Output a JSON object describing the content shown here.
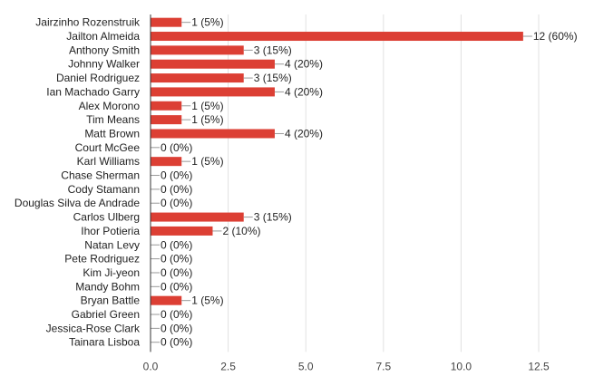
{
  "chart_data": {
    "type": "bar",
    "orientation": "horizontal",
    "categories": [
      "Jairzinho Rozenstruik",
      "Jailton Almeida",
      "Anthony Smith",
      "Johnny Walker",
      "Daniel Rodriguez",
      "Ian Machado Garry",
      "Alex Morono",
      "Tim Means",
      "Matt Brown",
      "Court McGee",
      "Karl Williams",
      "Chase Sherman",
      "Cody Stamann",
      "Douglas Silva de Andrade",
      "Carlos Ulberg",
      "Ihor Potieria",
      "Natan Levy",
      "Pete Rodriguez",
      "Kim Ji-yeon",
      "Mandy Bohm",
      "Bryan Battle",
      "Gabriel Green",
      "Jessica-Rose Clark",
      "Tainara Lisboa"
    ],
    "values": [
      1,
      12,
      3,
      4,
      3,
      4,
      1,
      1,
      4,
      0,
      1,
      0,
      0,
      0,
      3,
      2,
      0,
      0,
      0,
      0,
      1,
      0,
      0,
      0
    ],
    "data_labels": [
      "1 (5%)",
      "12 (60%)",
      "3 (15%)",
      "4 (20%)",
      "3 (15%)",
      "4 (20%)",
      "1 (5%)",
      "1 (5%)",
      "4 (20%)",
      "0 (0%)",
      "1 (5%)",
      "0 (0%)",
      "0 (0%)",
      "0 (0%)",
      "3 (15%)",
      "2 (10%)",
      "0 (0%)",
      "0 (0%)",
      "0 (0%)",
      "0 (0%)",
      "1 (5%)",
      "0 (0%)",
      "0 (0%)",
      "0 (0%)"
    ],
    "xlim": [
      0,
      12.5
    ],
    "xticks": [
      "0.0",
      "2.5",
      "5.0",
      "7.5",
      "10.0",
      "12.5"
    ],
    "tick_values": [
      0,
      2.5,
      5,
      7.5,
      10,
      12.5
    ],
    "grid": true,
    "legend": "none",
    "bar_color": "#dc3f34",
    "grid_color": "#e0e0e0",
    "axis_color": "#333333"
  }
}
